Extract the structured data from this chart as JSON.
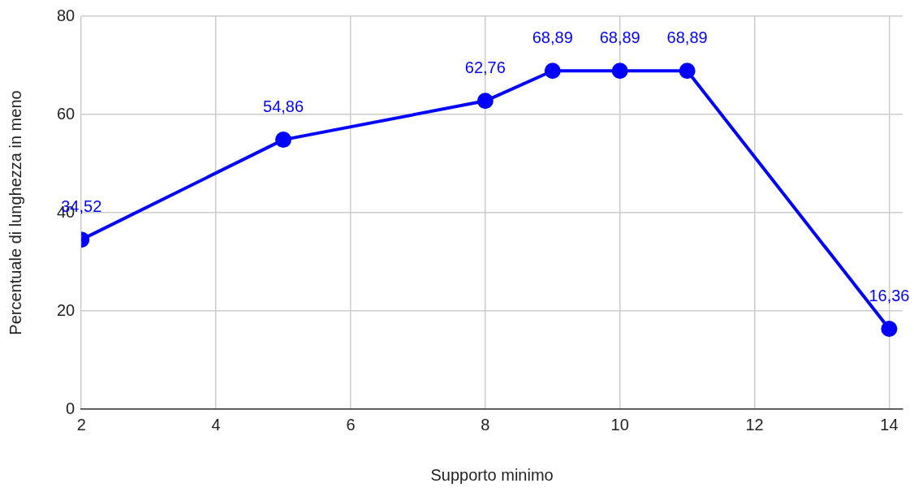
{
  "chart_data": {
    "type": "line",
    "xlabel": "Supporto minimo",
    "ylabel": "Percentuale di lunghezza in meno",
    "x": [
      2,
      5,
      8,
      9,
      10,
      11,
      14
    ],
    "series": [
      {
        "color": "#0000ff",
        "values": [
          34.52,
          54.86,
          62.76,
          68.89,
          68.89,
          68.89,
          16.36
        ],
        "value_labels": [
          "34,52",
          "54,86",
          "62,76",
          "68,89",
          "68,89",
          "68,89",
          "16,36"
        ]
      }
    ],
    "xlim": [
      2,
      14.2
    ],
    "xticks": [
      2,
      4,
      6,
      8,
      10,
      12,
      14
    ],
    "ylim": [
      0,
      80
    ],
    "yticks": [
      0,
      20,
      40,
      60,
      80
    ],
    "grid": true,
    "marker": "circle",
    "line_style": "solid",
    "legend": false
  }
}
